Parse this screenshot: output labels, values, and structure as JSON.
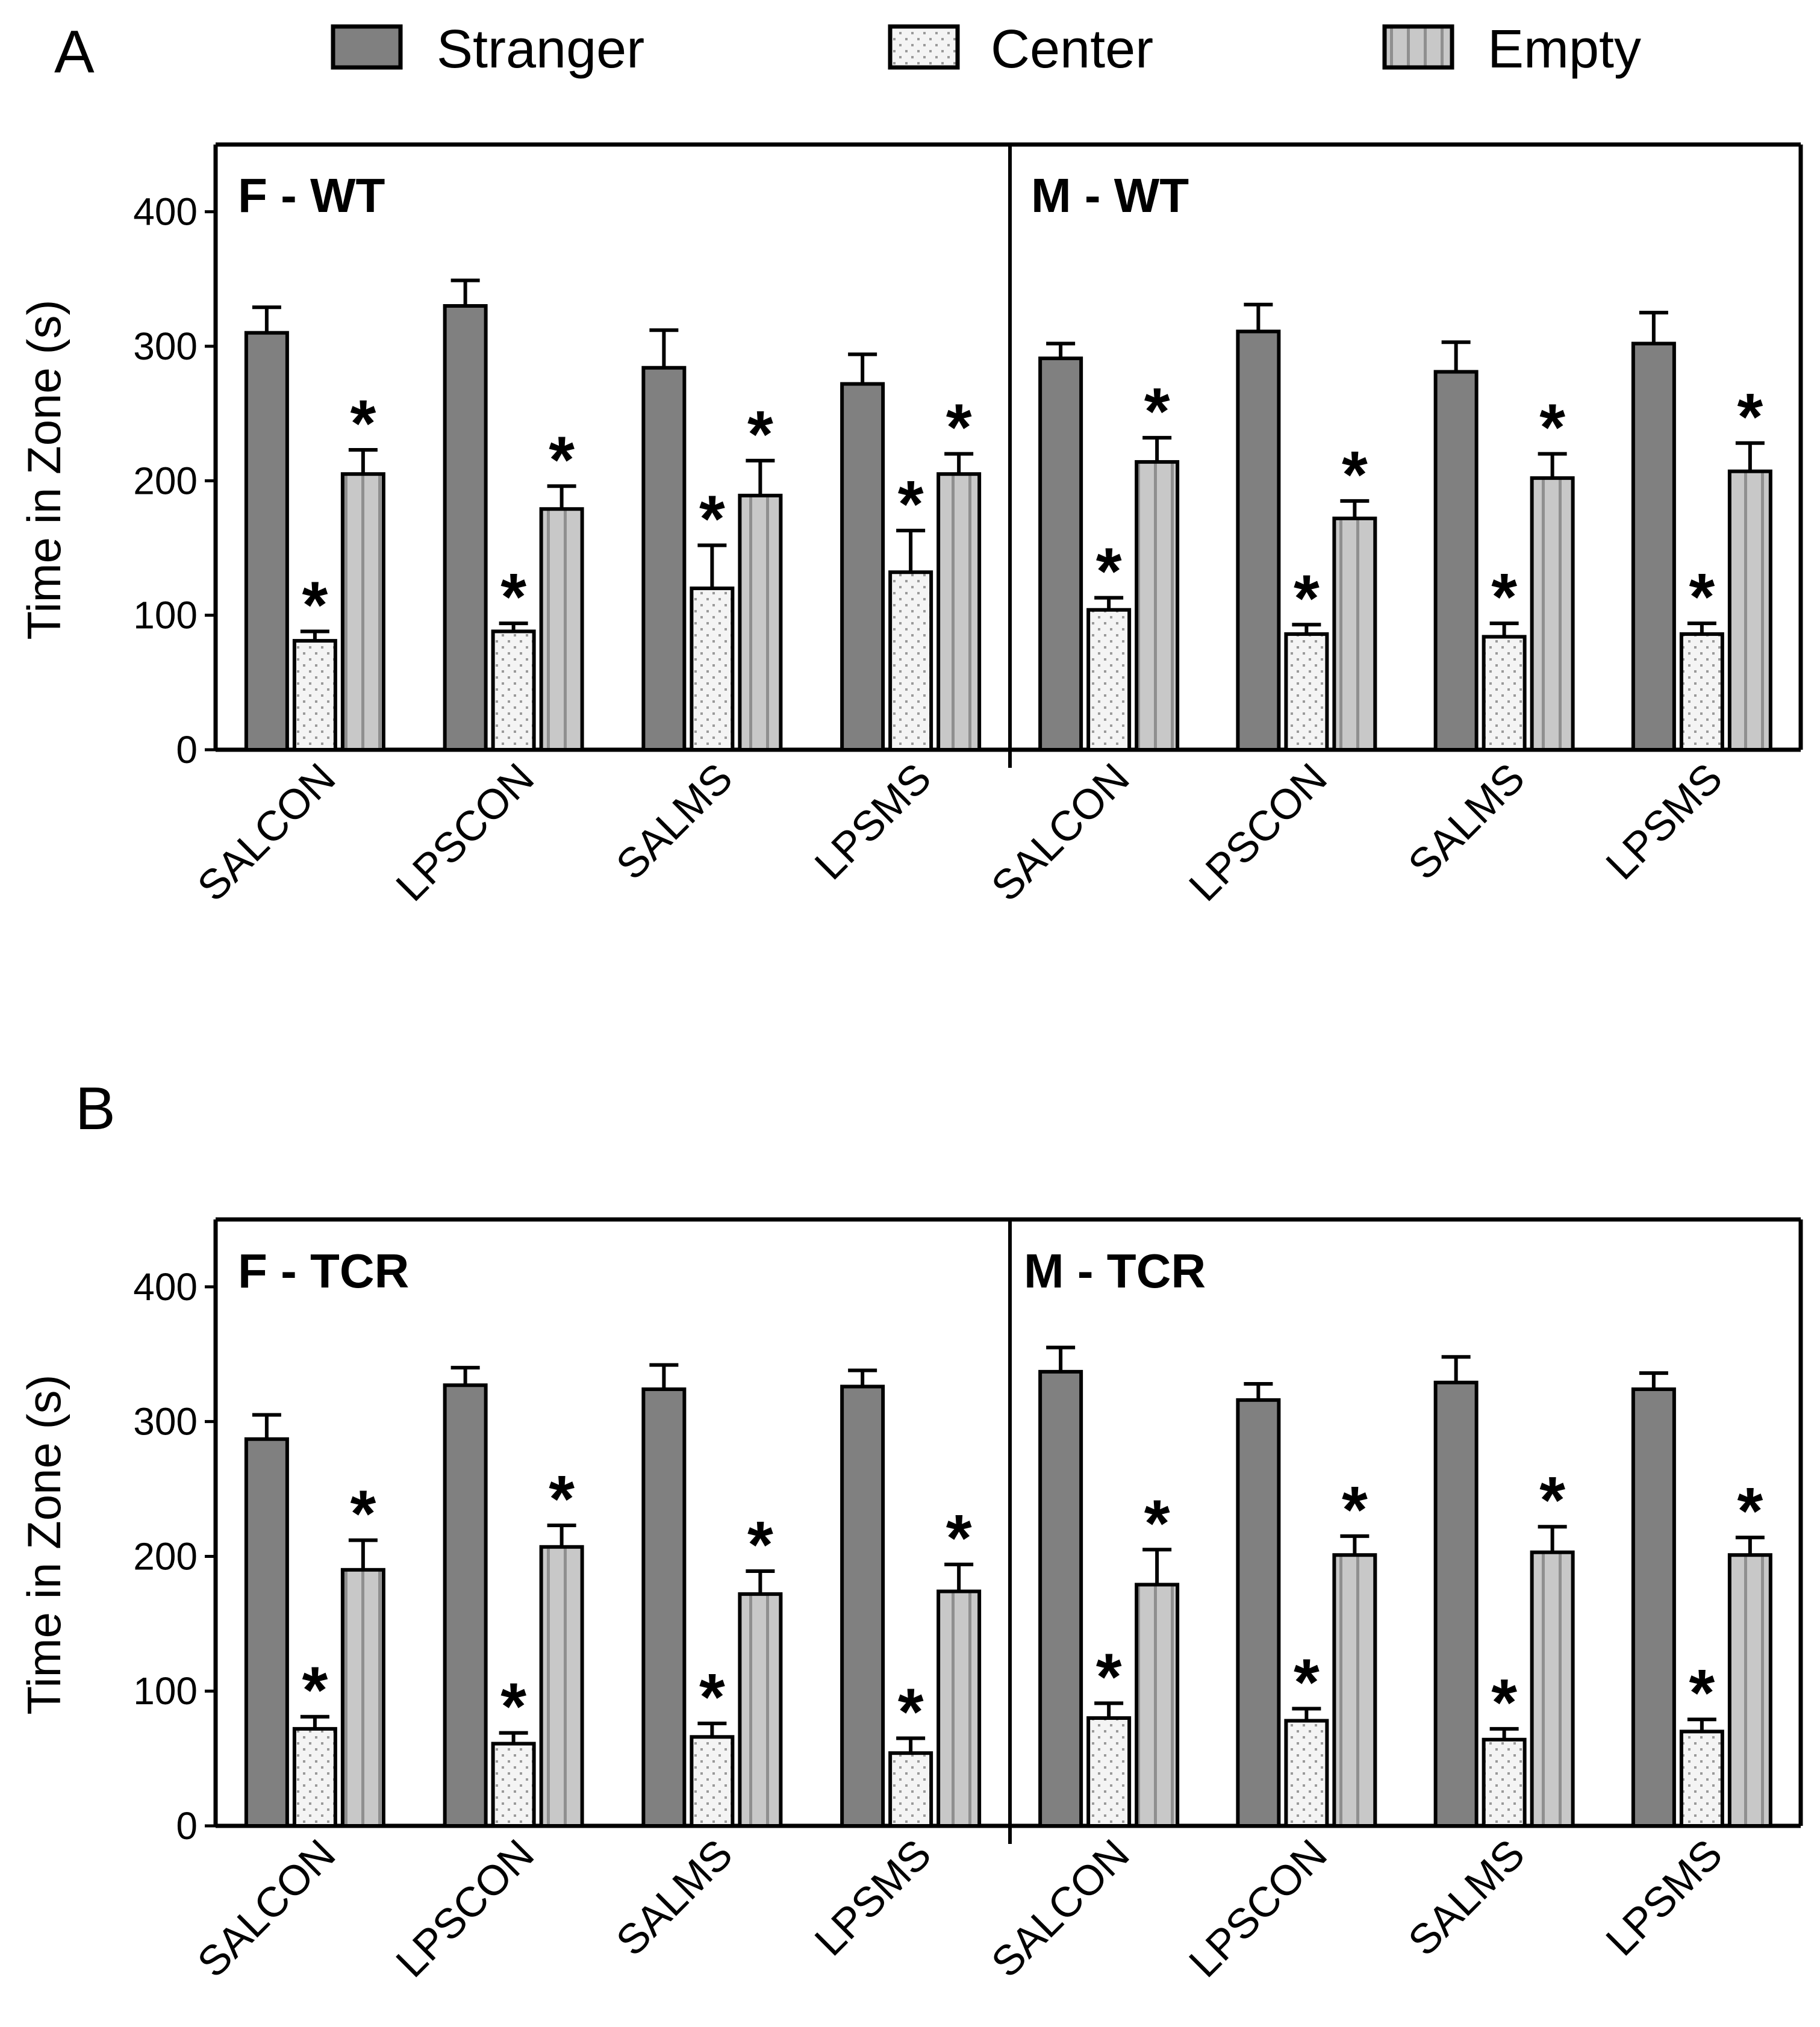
{
  "legend": {
    "items": [
      {
        "label": "Stranger",
        "pattern": "solid"
      },
      {
        "label": "Center",
        "pattern": "dots"
      },
      {
        "label": "Empty",
        "pattern": "stripes"
      }
    ]
  },
  "colors": {
    "stranger": "#808080",
    "center": "#f4f4f4",
    "center_dots": "#9a9a9a",
    "empty": "#c8c8c8",
    "empty_stripe": "#8f8f8f",
    "axis": "#000000"
  },
  "significance_marker": "*",
  "chart_data": [
    {
      "type": "bar",
      "panel": "A",
      "ylabel": "Time in Zone (s)",
      "ylim": [
        0,
        450
      ],
      "yticks": [
        0,
        100,
        200,
        300,
        400
      ],
      "categories": [
        "SALCON",
        "LPSCON",
        "SALMS",
        "LPSMS"
      ],
      "subplots": [
        {
          "title": "F - WT",
          "series": [
            {
              "name": "Stranger",
              "values": [
                310,
                330,
                284,
                272
              ],
              "errors": [
                19,
                19,
                28,
                22
              ],
              "significant": [
                false,
                false,
                false,
                false
              ]
            },
            {
              "name": "Center",
              "values": [
                81,
                88,
                120,
                132
              ],
              "errors": [
                7,
                6,
                32,
                31
              ],
              "significant": [
                true,
                true,
                true,
                true
              ]
            },
            {
              "name": "Empty",
              "values": [
                205,
                179,
                189,
                205
              ],
              "errors": [
                18,
                17,
                26,
                15
              ],
              "significant": [
                true,
                true,
                true,
                true
              ]
            }
          ]
        },
        {
          "title": "M - WT",
          "series": [
            {
              "name": "Stranger",
              "values": [
                291,
                311,
                281,
                302
              ],
              "errors": [
                11,
                20,
                22,
                23
              ],
              "significant": [
                false,
                false,
                false,
                false
              ]
            },
            {
              "name": "Center",
              "values": [
                104,
                86,
                84,
                86
              ],
              "errors": [
                9,
                7,
                10,
                8
              ],
              "significant": [
                true,
                true,
                true,
                true
              ]
            },
            {
              "name": "Empty",
              "values": [
                214,
                172,
                202,
                207
              ],
              "errors": [
                18,
                13,
                18,
                21
              ],
              "significant": [
                true,
                true,
                true,
                true
              ]
            }
          ]
        }
      ]
    },
    {
      "type": "bar",
      "panel": "B",
      "ylabel": "Time in Zone (s)",
      "ylim": [
        0,
        450
      ],
      "yticks": [
        0,
        100,
        200,
        300,
        400
      ],
      "categories": [
        "SALCON",
        "LPSCON",
        "SALMS",
        "LPSMS"
      ],
      "subplots": [
        {
          "title": "F - TCR",
          "series": [
            {
              "name": "Stranger",
              "values": [
                287,
                327,
                324,
                326
              ],
              "errors": [
                18,
                13,
                18,
                12
              ],
              "significant": [
                false,
                false,
                false,
                false
              ]
            },
            {
              "name": "Center",
              "values": [
                72,
                61,
                66,
                54
              ],
              "errors": [
                9,
                8,
                10,
                11
              ],
              "significant": [
                true,
                true,
                true,
                true
              ]
            },
            {
              "name": "Empty",
              "values": [
                190,
                207,
                172,
                174
              ],
              "errors": [
                22,
                16,
                17,
                20
              ],
              "significant": [
                true,
                true,
                true,
                true
              ]
            }
          ]
        },
        {
          "title": "M - TCR",
          "series": [
            {
              "name": "Stranger",
              "values": [
                337,
                316,
                329,
                324
              ],
              "errors": [
                18,
                12,
                19,
                12
              ],
              "significant": [
                false,
                false,
                false,
                false
              ]
            },
            {
              "name": "Center",
              "values": [
                80,
                78,
                64,
                70
              ],
              "errors": [
                11,
                9,
                8,
                9
              ],
              "significant": [
                true,
                true,
                true,
                true
              ]
            },
            {
              "name": "Empty",
              "values": [
                179,
                201,
                203,
                201
              ],
              "errors": [
                26,
                14,
                19,
                13
              ],
              "significant": [
                true,
                true,
                true,
                true
              ]
            }
          ]
        }
      ]
    }
  ]
}
